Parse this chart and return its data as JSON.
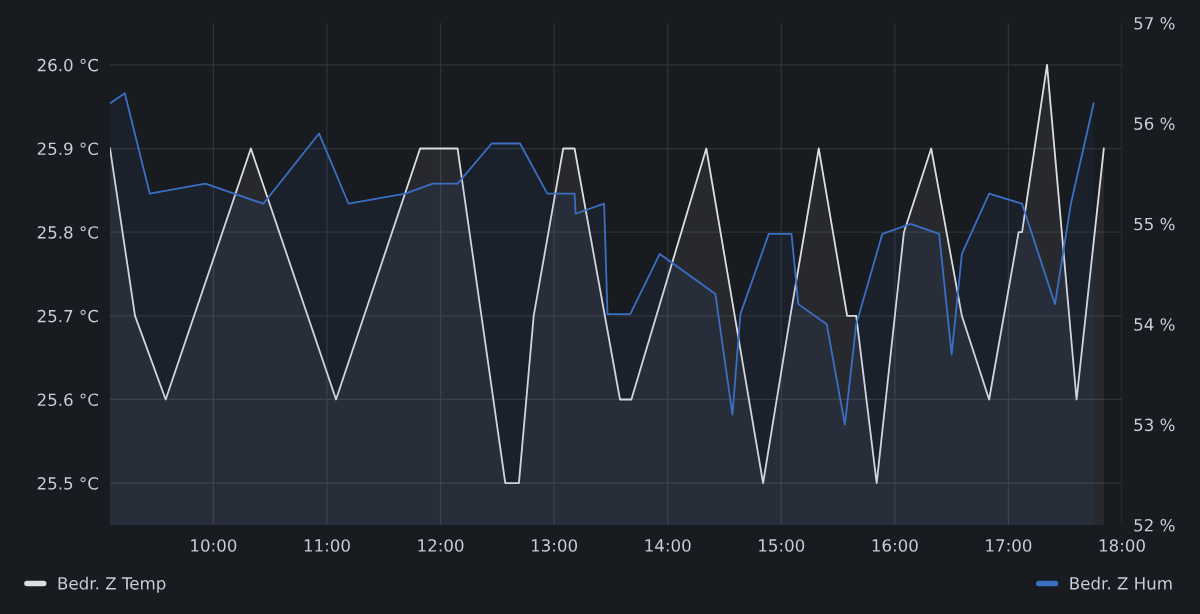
{
  "chart_data": {
    "type": "area",
    "series": [
      {
        "name": "Bedr. Z Temp",
        "color": "#dcdde3",
        "axis": "y",
        "x": [
          9.09,
          9.31,
          9.58,
          10.33,
          11.08,
          11.82,
          12.15,
          12.57,
          12.69,
          12.82,
          13.08,
          13.18,
          13.58,
          13.68,
          14.34,
          14.84,
          15.08,
          15.33,
          15.58,
          15.66,
          15.84,
          16.08,
          16.32,
          16.59,
          16.83,
          17.09,
          17.12,
          17.34,
          17.6,
          17.84
        ],
        "values": [
          25.9,
          25.7,
          25.6,
          25.9,
          25.6,
          25.9,
          25.9,
          25.5,
          25.5,
          25.7,
          25.9,
          25.9,
          25.6,
          25.6,
          25.9,
          25.5,
          25.7,
          25.9,
          25.7,
          25.7,
          25.5,
          25.8,
          25.9,
          25.7,
          25.6,
          25.8,
          25.8,
          26.0,
          25.6,
          25.9
        ]
      },
      {
        "name": "Bedr. Z Hum",
        "color": "#3a6fc4",
        "axis": "y2",
        "x": [
          9.09,
          9.22,
          9.44,
          9.93,
          10.44,
          10.93,
          11.19,
          11.69,
          11.93,
          12.15,
          12.45,
          12.7,
          12.94,
          13.18,
          13.19,
          13.44,
          13.47,
          13.67,
          13.93,
          14.42,
          14.57,
          14.64,
          14.89,
          15.09,
          15.15,
          15.4,
          15.56,
          15.66,
          15.89,
          16.14,
          16.39,
          16.5,
          16.59,
          16.83,
          17.12,
          17.41,
          17.55,
          17.75
        ],
        "values": [
          56.2,
          56.3,
          55.3,
          55.4,
          55.2,
          55.9,
          55.2,
          55.3,
          55.4,
          55.4,
          55.8,
          55.8,
          55.3,
          55.3,
          55.1,
          55.2,
          54.1,
          54.1,
          54.7,
          54.3,
          53.1,
          54.1,
          54.9,
          54.9,
          54.2,
          54.0,
          53.0,
          54.0,
          54.9,
          55.0,
          54.9,
          53.7,
          54.7,
          55.3,
          55.2,
          54.2,
          55.2,
          56.2
        ]
      }
    ],
    "xlim": [
      9.09,
      18.0
    ],
    "xticks": [
      {
        "value": 10,
        "label": "10:00"
      },
      {
        "value": 11,
        "label": "11:00"
      },
      {
        "value": 12,
        "label": "12:00"
      },
      {
        "value": 13,
        "label": "13:00"
      },
      {
        "value": 14,
        "label": "14:00"
      },
      {
        "value": 15,
        "label": "15:00"
      },
      {
        "value": 16,
        "label": "16:00"
      },
      {
        "value": 17,
        "label": "17:00"
      },
      {
        "value": 18,
        "label": "18:00"
      }
    ],
    "ylim": [
      25.45,
      26.05
    ],
    "yticks": [
      {
        "value": 25.5,
        "label": "25.5 °C"
      },
      {
        "value": 25.6,
        "label": "25.6 °C"
      },
      {
        "value": 25.7,
        "label": "25.7 °C"
      },
      {
        "value": 25.8,
        "label": "25.8 °C"
      },
      {
        "value": 25.9,
        "label": "25.9 °C"
      },
      {
        "value": 26.0,
        "label": "26.0 °C"
      }
    ],
    "y2lim": [
      52,
      57
    ],
    "y2ticks": [
      {
        "value": 52,
        "label": "52 %"
      },
      {
        "value": 53,
        "label": "53 %"
      },
      {
        "value": 54,
        "label": "54 %"
      },
      {
        "value": 55,
        "label": "55 %"
      },
      {
        "value": 56,
        "label": "56 %"
      },
      {
        "value": 57,
        "label": "57 %"
      }
    ],
    "grid": true,
    "legend": "bottom",
    "marker": "none",
    "line_style": "solid"
  }
}
